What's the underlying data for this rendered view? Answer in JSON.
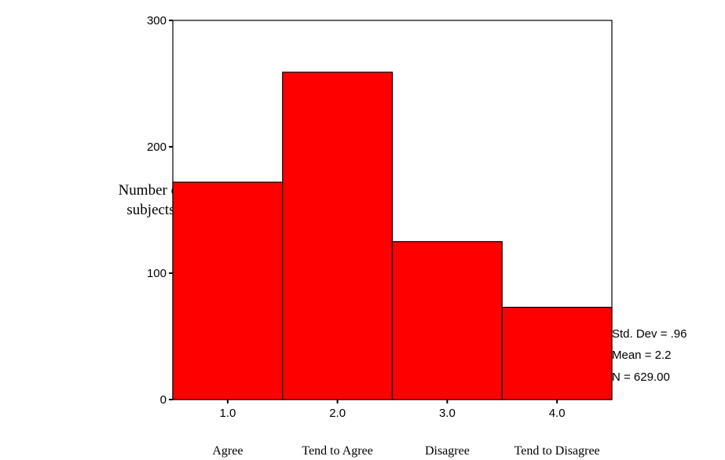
{
  "chart_data": {
    "type": "bar",
    "categories": [
      "1.0",
      "2.0",
      "3.0",
      "4.0"
    ],
    "category_labels": [
      "Agree",
      "Tend to Agree",
      "Disagree",
      "Tend to Disagree"
    ],
    "values": [
      172,
      259,
      125,
      73
    ],
    "ylabel_lines": [
      "Number of",
      "subjects"
    ],
    "xlabel": "",
    "ylim": [
      0,
      300
    ],
    "yticks": [
      0,
      100,
      200,
      300
    ],
    "grid": false,
    "colors": {
      "bar": "#ff0000",
      "bar_edge": "#000000",
      "axis": "#000000"
    },
    "stats": {
      "std_dev": "Std. Dev = .96",
      "mean": "Mean = 2.2",
      "n": "N = 629.00"
    }
  }
}
